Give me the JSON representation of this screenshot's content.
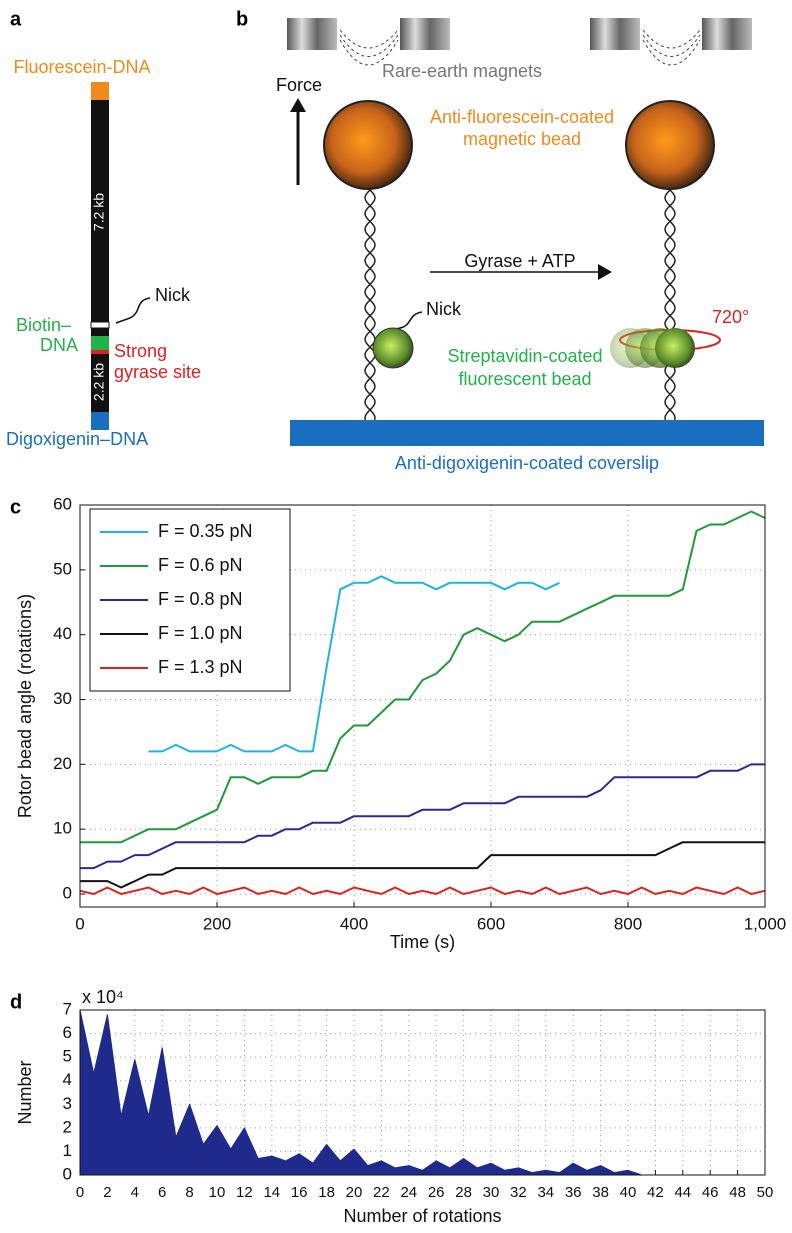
{
  "figure": {
    "panel_labels": [
      "a",
      "b",
      "c",
      "d"
    ],
    "panel_a": {
      "top_label": "Fluorescein-DNA",
      "length_top": "7.2 kb",
      "nick": "Nick",
      "biotin": [
        "Biotin–",
        "DNA"
      ],
      "gyrase": [
        "Strong",
        "gyrase site"
      ],
      "length_bottom": "2.2 kb",
      "bottom_label": "Digoxigenin–DNA"
    },
    "panel_b": {
      "magnets": "Rare-earth magnets",
      "force": "Force",
      "magnetic_bead": [
        "Anti-fluorescein-coated",
        "magnetic bead"
      ],
      "reaction": "Gyrase + ATP",
      "nick": "Nick",
      "angle": "720°",
      "fluorescent_bead": [
        "Streptavidin-coated",
        "fluorescent bead"
      ],
      "coverslip": "Anti-digoxigenin-coated coverslip"
    }
  },
  "chart_data": [
    {
      "type": "line",
      "xlabel": "Time (s)",
      "ylabel": "Rotor bead angle (rotations)",
      "x": [
        0,
        20,
        40,
        60,
        80,
        100,
        120,
        140,
        160,
        180,
        200,
        220,
        240,
        260,
        280,
        300,
        320,
        340,
        360,
        380,
        400,
        420,
        440,
        460,
        480,
        500,
        520,
        540,
        560,
        580,
        600,
        620,
        640,
        660,
        680,
        700,
        720,
        740,
        760,
        780,
        800,
        820,
        840,
        860,
        880,
        900,
        920,
        940,
        960,
        980,
        1000
      ],
      "xlim": [
        0,
        1000
      ],
      "ylim": [
        -2,
        60
      ],
      "xticks": [
        0,
        200,
        400,
        600,
        800,
        {
          "value": 1000,
          "label": "1,000"
        }
      ],
      "yticks": [
        0,
        10,
        20,
        30,
        40,
        50,
        60
      ],
      "grid": true,
      "legend": "upper left",
      "series": [
        {
          "name": "F = 0.35 pN",
          "color": "#1fb4e0",
          "values": [
            null,
            null,
            null,
            null,
            null,
            22,
            22,
            23,
            22,
            22,
            22,
            23,
            22,
            22,
            22,
            23,
            22,
            22,
            35,
            47,
            48,
            48,
            49,
            48,
            48,
            48,
            47,
            48,
            48,
            48,
            48,
            47,
            48,
            48,
            47,
            48,
            null,
            null,
            null,
            null,
            null,
            null,
            null,
            null,
            null,
            null,
            null,
            null,
            null,
            null,
            null
          ]
        },
        {
          "name": "F = 0.6 pN",
          "color": "#1f9a3a",
          "values": [
            8,
            8,
            8,
            8,
            9,
            10,
            10,
            10,
            11,
            12,
            13,
            18,
            18,
            17,
            18,
            18,
            18,
            19,
            19,
            24,
            26,
            26,
            28,
            30,
            30,
            33,
            34,
            36,
            40,
            41,
            40,
            39,
            40,
            42,
            42,
            42,
            43,
            44,
            45,
            46,
            46,
            46,
            46,
            46,
            47,
            56,
            57,
            57,
            58,
            59,
            58
          ]
        },
        {
          "name": "F = 0.8 pN",
          "color": "#2a2a8f",
          "values": [
            4,
            4,
            5,
            5,
            6,
            6,
            7,
            8,
            8,
            8,
            8,
            8,
            8,
            9,
            9,
            10,
            10,
            11,
            11,
            11,
            12,
            12,
            12,
            12,
            12,
            13,
            13,
            13,
            14,
            14,
            14,
            14,
            15,
            15,
            15,
            15,
            15,
            15,
            16,
            18,
            18,
            18,
            18,
            18,
            18,
            18,
            19,
            19,
            19,
            20,
            20
          ]
        },
        {
          "name": "F = 1.0 pN",
          "color": "#111111",
          "values": [
            2,
            2,
            2,
            1,
            2,
            3,
            3,
            4,
            4,
            4,
            4,
            4,
            4,
            4,
            4,
            4,
            4,
            4,
            4,
            4,
            4,
            4,
            4,
            4,
            4,
            4,
            4,
            4,
            4,
            4,
            6,
            6,
            6,
            6,
            6,
            6,
            6,
            6,
            6,
            6,
            6,
            6,
            6,
            7,
            8,
            8,
            8,
            8,
            8,
            8,
            8
          ]
        },
        {
          "name": "F = 1.3 pN",
          "color": "#e02020",
          "values": [
            0.5,
            0,
            1,
            0,
            0.5,
            1,
            0,
            0.5,
            0,
            1,
            0,
            0.5,
            1,
            0,
            0.5,
            0,
            1,
            0,
            0.5,
            0,
            1,
            0.5,
            0,
            1,
            0,
            0.5,
            0,
            1,
            0,
            0.5,
            1,
            0,
            0.5,
            0,
            1,
            0,
            0.5,
            1,
            0,
            0.5,
            0,
            1,
            0,
            0.5,
            0,
            1,
            0.5,
            0,
            1,
            0,
            0.5
          ]
        }
      ]
    },
    {
      "type": "area",
      "xlabel": "Number of rotations",
      "ylabel": "Number",
      "y_multiplier": "x 10⁴",
      "color": "#1e2a8c",
      "x": [
        0,
        1,
        2,
        3,
        4,
        5,
        6,
        7,
        8,
        9,
        10,
        11,
        12,
        13,
        14,
        15,
        16,
        17,
        18,
        19,
        20,
        21,
        22,
        23,
        24,
        25,
        26,
        27,
        28,
        29,
        30,
        31,
        32,
        33,
        34,
        35,
        36,
        37,
        38,
        39,
        40,
        41,
        42,
        43,
        44,
        45,
        46,
        47,
        48,
        49,
        50
      ],
      "values": [
        7,
        4.3,
        6.8,
        2.5,
        4.9,
        2.5,
        5.4,
        1.6,
        3.0,
        1.3,
        2.1,
        1.1,
        2.0,
        0.7,
        0.8,
        0.6,
        0.9,
        0.5,
        1.3,
        0.6,
        1.1,
        0.4,
        0.6,
        0.3,
        0.4,
        0.2,
        0.6,
        0.3,
        0.7,
        0.3,
        0.5,
        0.2,
        0.3,
        0.1,
        0.2,
        0.1,
        0.5,
        0.2,
        0.4,
        0.1,
        0.2,
        0,
        0,
        0,
        0,
        0,
        0,
        0,
        0,
        0,
        0
      ],
      "xlim": [
        0,
        50
      ],
      "ylim": [
        0,
        7
      ],
      "xticks": [
        0,
        2,
        4,
        6,
        8,
        10,
        12,
        14,
        16,
        18,
        20,
        22,
        24,
        26,
        28,
        30,
        32,
        34,
        36,
        38,
        40,
        42,
        44,
        46,
        48,
        50
      ],
      "yticks": [
        0,
        1,
        2,
        3,
        4,
        5,
        6,
        7
      ],
      "grid": true
    }
  ]
}
